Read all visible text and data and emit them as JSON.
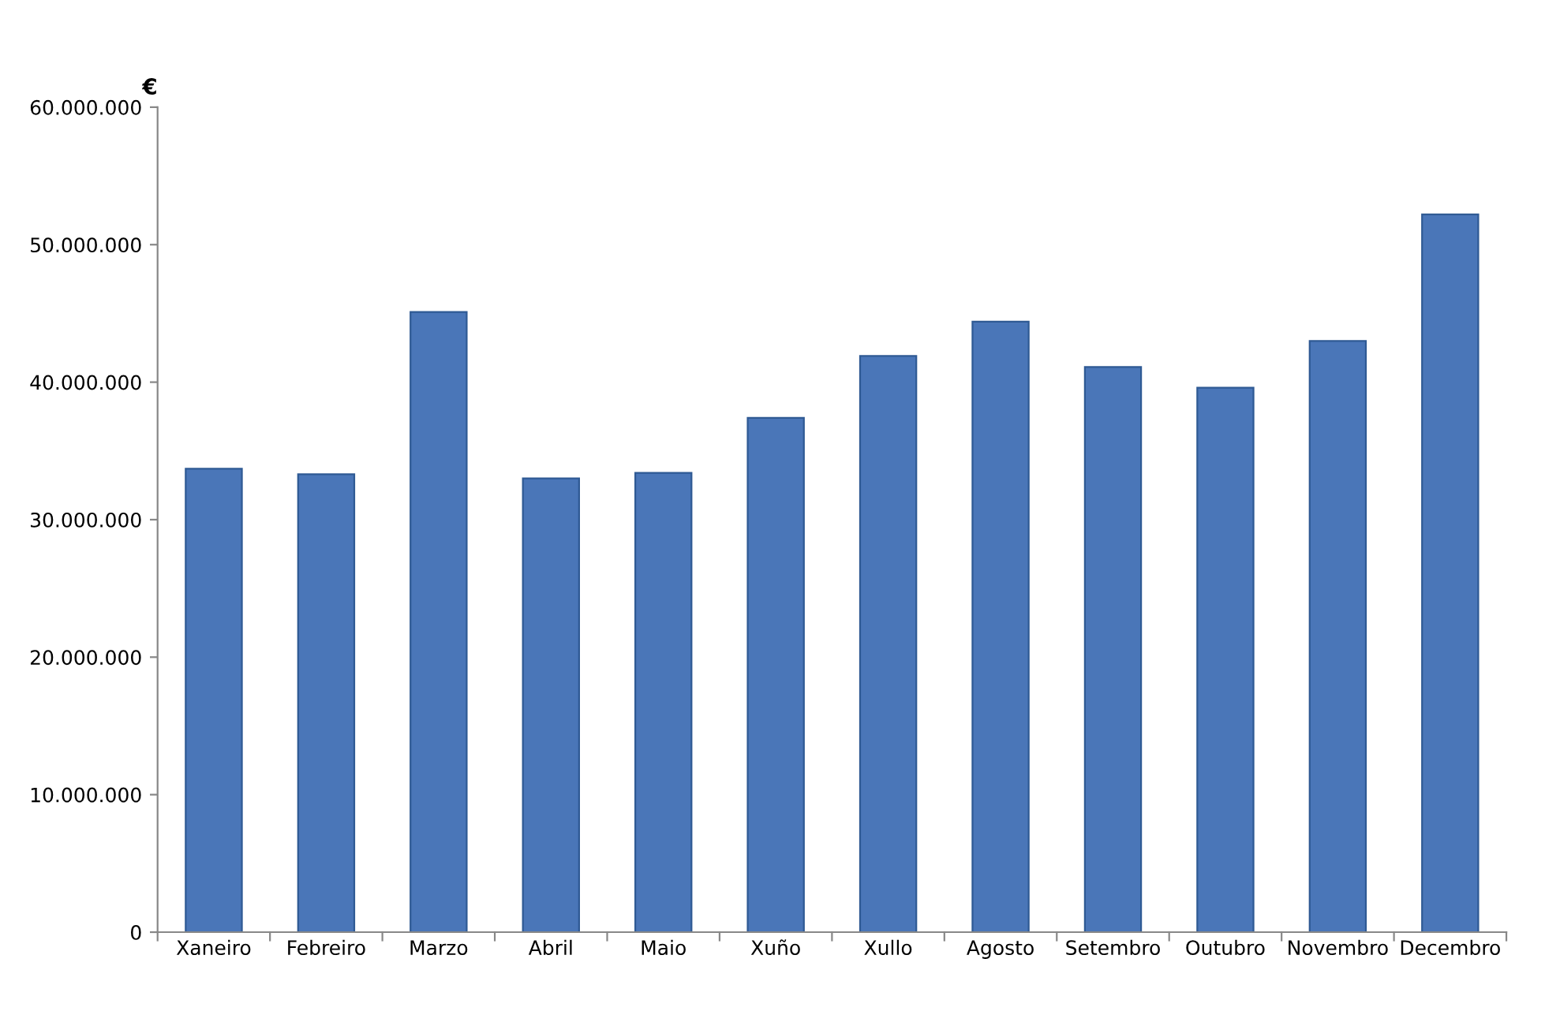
{
  "chart_data": {
    "type": "bar",
    "ylabel": "€",
    "categories": [
      "Xaneiro",
      "Febreiro",
      "Marzo",
      "Abril",
      "Maio",
      "Xuño",
      "Xullo",
      "Agosto",
      "Setembro",
      "Outubro",
      "Novembro",
      "Decembro"
    ],
    "values": [
      33700000,
      33300000,
      45100000,
      33000000,
      33400000,
      37400000,
      41900000,
      44400000,
      41100000,
      39600000,
      43000000,
      52200000
    ],
    "color": "#4a76b8",
    "ylim": [
      0,
      60000000
    ],
    "yticks": [
      {
        "value": 0,
        "label": "0"
      },
      {
        "value": 10000000,
        "label": "10.000.000"
      },
      {
        "value": 20000000,
        "label": "20.000.000"
      },
      {
        "value": 30000000,
        "label": "30.000.000"
      },
      {
        "value": 40000000,
        "label": "40.000.000"
      },
      {
        "value": 50000000,
        "label": "50.000.000"
      },
      {
        "value": 60000000,
        "label": "60.000.000"
      }
    ],
    "grid": false,
    "legend": false
  }
}
